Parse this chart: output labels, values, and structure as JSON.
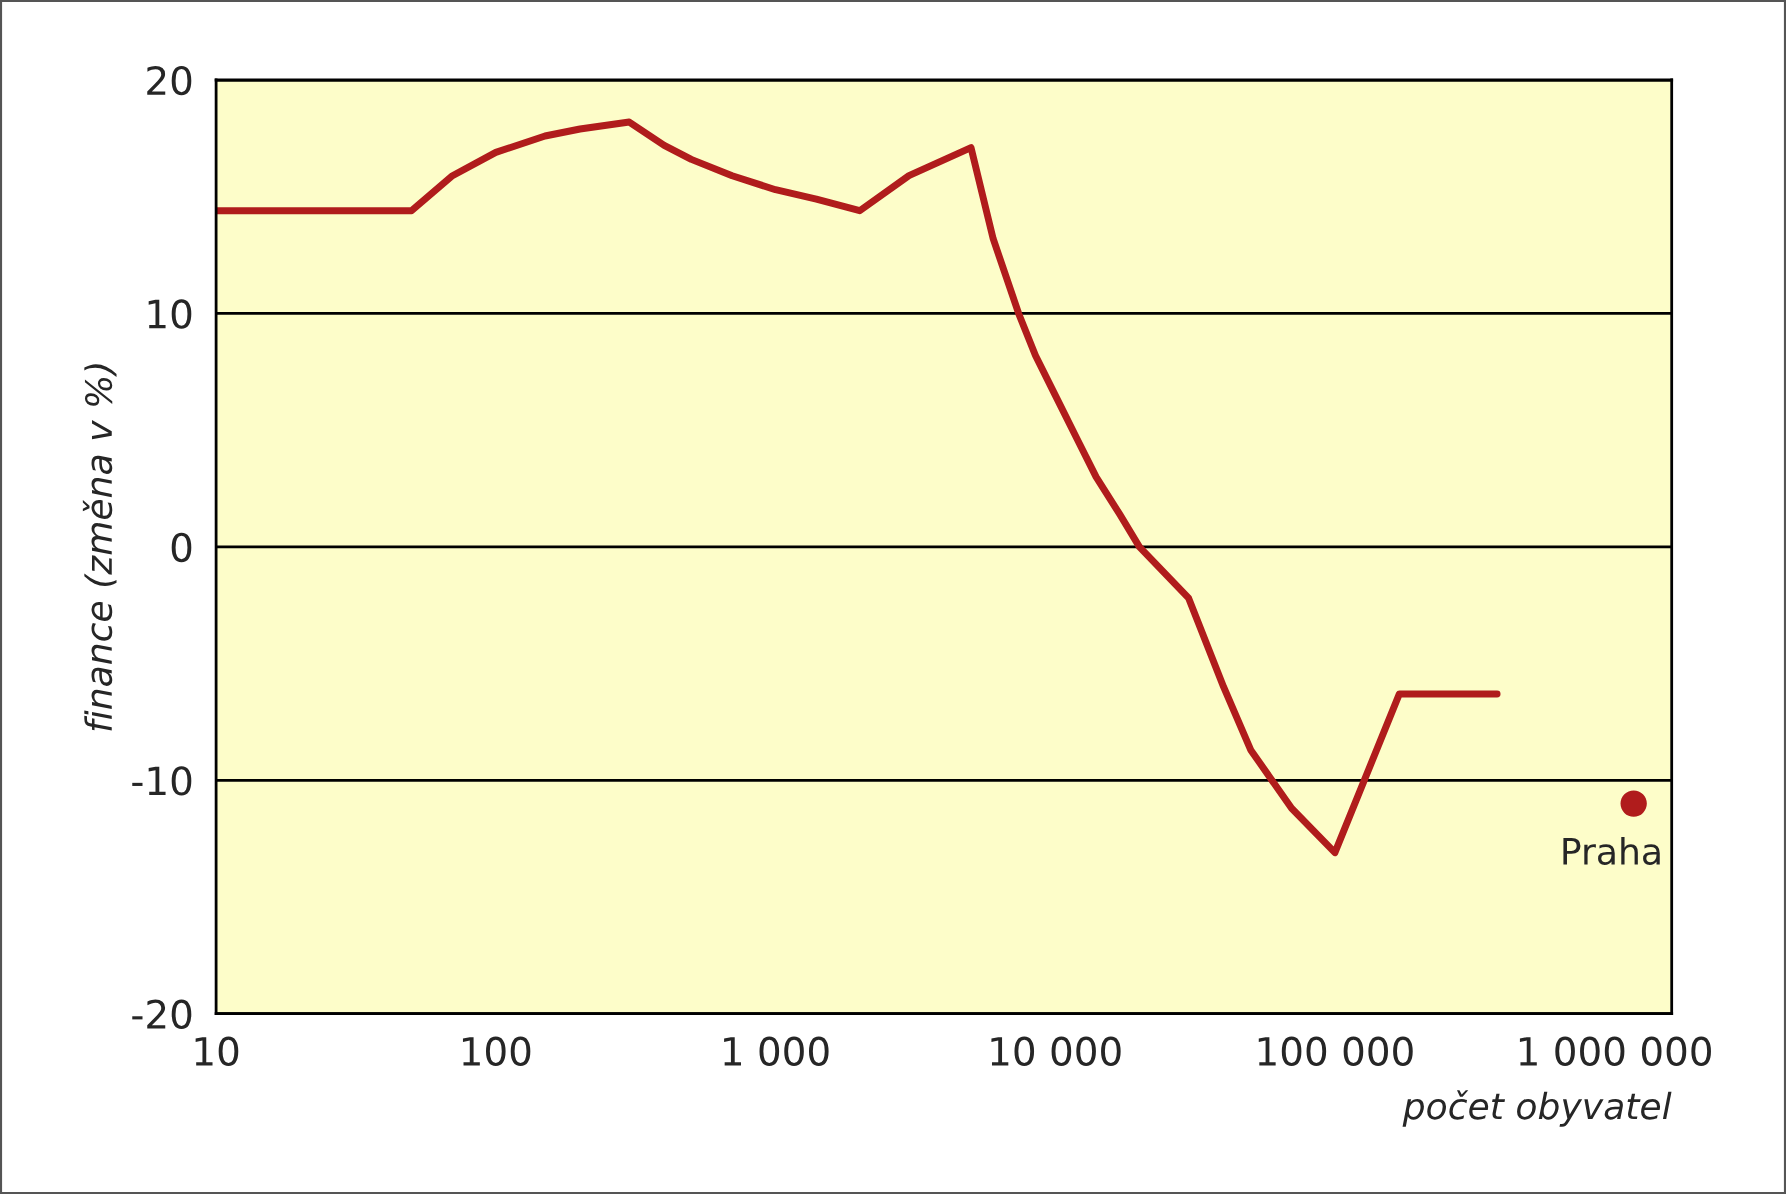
{
  "chart_data": {
    "type": "line",
    "xlabel": "počet obyvatel",
    "ylabel": "finance (změna v %)",
    "log": "x",
    "grid": "y",
    "xlim": [
      10,
      1600000
    ],
    "ylim": [
      -20,
      20
    ],
    "xticks": [
      10,
      100,
      {
        "value": 1000,
        "label": "1 000"
      },
      {
        "value": 10000,
        "label": "10 000"
      },
      {
        "value": 100000,
        "label": "100 000"
      },
      {
        "value": 1000000,
        "label": "1 000 000"
      }
    ],
    "yticks": [
      -20,
      -10,
      0,
      10,
      20
    ],
    "series": [
      {
        "color": "#b01c1c",
        "x": [
          10,
          50,
          70,
          100,
          150,
          200,
          300,
          400,
          500,
          700,
          1000,
          1400,
          2000,
          3000,
          5000,
          6000,
          7400,
          8500,
          10000,
          12000,
          14000,
          17000,
          20000,
          30000,
          40000,
          50000,
          70000,
          100000,
          170000,
          380000
        ],
        "values": [
          14.4,
          14.4,
          15.9,
          16.9,
          17.6,
          17.9,
          18.2,
          17.2,
          16.6,
          15.9,
          15.3,
          14.9,
          14.4,
          15.9,
          17.1,
          13.2,
          10,
          8.2,
          6.5,
          4.6,
          3,
          1.4,
          0,
          -2.2,
          -6.0,
          -8.7,
          -11.2,
          -13.1,
          -6.3,
          -6.3
        ]
      },
      {
        "type": "scatter",
        "name": "Praha",
        "color": "#b01c1c",
        "x": [
          1170000
        ],
        "values": [
          -11
        ]
      }
    ]
  }
}
